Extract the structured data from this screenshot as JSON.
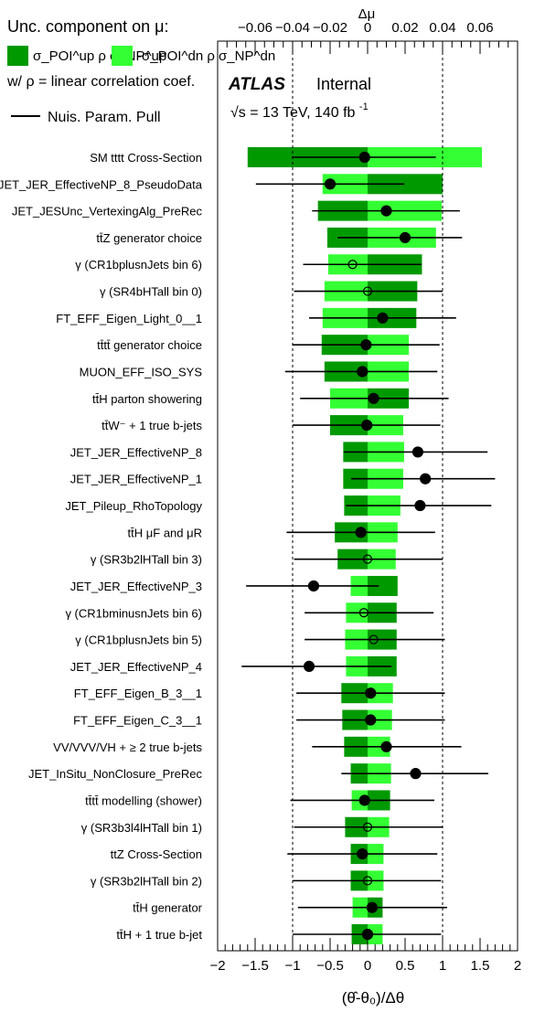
{
  "chart_data": {
    "type": "bar",
    "x_axis_bottom": {
      "range": [
        -2,
        2
      ],
      "ticks": [
        -2,
        -1.5,
        -1,
        -0.5,
        0,
        0.5,
        1,
        1.5,
        2
      ],
      "tick_labels": [
        "−2",
        "−1.5",
        "−1",
        "−0.5",
        "0",
        "0.5",
        "1",
        "1.5",
        "2"
      ],
      "label": "(θ̂-θ₀)/Δθ"
    },
    "x_axis_top": {
      "range": [
        -0.08,
        0.08
      ],
      "ticks": [
        -0.06,
        -0.04,
        -0.02,
        0,
        0.02,
        0.04,
        0.06
      ],
      "tick_labels": [
        "−0.06",
        "−0.04",
        "−0.02",
        "0",
        "0.02",
        "0.04",
        "0.06"
      ],
      "label": "Δμ"
    },
    "legend": {
      "header": "Unc. component on  μ:",
      "up_label": "σ_POI^up ρ σ_NP^up",
      "dn_label": "-σ_POI^dn ρ σ_NP^dn",
      "rho_note": "w/  ρ = linear correlation coef.",
      "pull_label": "Nuis. Param. Pull",
      "up_color": "#009900",
      "dn_color": "#33ff33"
    },
    "atlas": {
      "brand": "ATLAS",
      "status": "Internal",
      "energy": "√s = 13 TeV, 140 fb",
      "energy_sup": "-1"
    },
    "reference_lines": [
      -1,
      1
    ],
    "categories": [
      "SM tttt Cross-Section",
      "JET_JER_EffectiveNP_8_PseudoData",
      "JET_JESUnc_VertexingAlg_PreRec",
      "tt̄Z generator choice",
      "γ (CR1bplusnJets bin 6)",
      "γ (SR4bHTall bin 0)",
      "FT_EFF_Eigen_Light_0__1",
      "tt̄tt̄ generator choice",
      "MUON_EFF_ISO_SYS",
      "tt̄H parton showering",
      "tt̄W⁻ + 1 true b-jets",
      "JET_JER_EffectiveNP_8",
      "JET_JER_EffectiveNP_1",
      "JET_Pileup_RhoTopology",
      "tt̄H μF and μR",
      "γ (SR3b2lHTall bin 3)",
      "JET_JER_EffectiveNP_3",
      "γ (CR1bminusnJets bin 6)",
      "γ (CR1bplusnJets bin 5)",
      "JET_JER_EffectiveNP_4",
      "FT_EFF_Eigen_B_3__1",
      "FT_EFF_Eigen_C_3__1",
      "VV/VVV/VH +  ≥ 2 true b-jets",
      "JET_InSitu_NonClosure_PreRec",
      "tt̄tt̄ modelling (shower)",
      "γ (SR3b3l4lHTall bin 1)",
      "ttZ Cross-Section",
      "γ (SR3b2lHTall bin 2)",
      "tt̄H generator",
      "tt̄H + 1 true b-jet"
    ],
    "series": [
      {
        "name": "σ_POI^up ρ σ_NP^up",
        "color": "#009900",
        "values": [
          -0.064,
          0.04,
          -0.0265,
          -0.0215,
          0.029,
          0.0265,
          0.026,
          -0.0245,
          -0.023,
          0.022,
          -0.02,
          -0.013,
          -0.013,
          -0.0125,
          -0.0175,
          -0.016,
          0.016,
          0.0155,
          0.0155,
          0.0155,
          -0.014,
          -0.0135,
          -0.0125,
          -0.009,
          0.012,
          -0.012,
          -0.009,
          -0.009,
          0.008,
          -0.0085
        ]
      },
      {
        "name": "-σ_POI^dn ρ σ_NP^dn",
        "color": "#33ff33",
        "values": [
          0.061,
          -0.024,
          0.0395,
          0.0365,
          -0.021,
          -0.023,
          -0.024,
          0.022,
          0.022,
          -0.02,
          0.019,
          0.0195,
          0.019,
          0.0175,
          0.016,
          0.015,
          -0.009,
          -0.0115,
          -0.012,
          -0.0115,
          0.0135,
          0.013,
          0.012,
          0.0125,
          -0.0085,
          0.0115,
          0.0085,
          0.0085,
          -0.008,
          0.008
        ]
      },
      {
        "name": "Nuis. Param. Pull",
        "pull": [
          -0.04,
          -0.5,
          0.25,
          0.5,
          -0.2,
          0.0,
          0.2,
          -0.02,
          -0.07,
          0.08,
          -0.01,
          0.67,
          0.77,
          0.7,
          -0.09,
          0.0,
          -0.72,
          -0.05,
          0.08,
          -0.78,
          0.04,
          0.04,
          0.25,
          0.64,
          -0.04,
          0.0,
          -0.07,
          0.0,
          0.06,
          0.0
        ],
        "err_lo": [
          0.97,
          0.99,
          0.99,
          0.9,
          0.66,
          0.98,
          0.98,
          0.98,
          1.03,
          0.98,
          0.99,
          0.99,
          0.99,
          0.99,
          0.99,
          0.98,
          0.9,
          0.79,
          0.92,
          0.9,
          0.99,
          0.99,
          0.99,
          0.99,
          0.99,
          0.98,
          1.0,
          1.0,
          0.99,
          1.0
        ],
        "err_hi": [
          0.95,
          0.99,
          0.98,
          0.76,
          0.92,
          1.0,
          0.98,
          0.98,
          1.0,
          1.0,
          0.98,
          0.93,
          0.93,
          0.95,
          0.99,
          1.0,
          0.87,
          0.93,
          0.95,
          1.1,
          0.99,
          0.99,
          1.0,
          0.97,
          0.93,
          1.0,
          1.0,
          0.98,
          1.0,
          0.98
        ],
        "open_marker": [
          false,
          false,
          false,
          false,
          true,
          true,
          false,
          false,
          false,
          false,
          false,
          false,
          false,
          false,
          false,
          true,
          false,
          true,
          true,
          false,
          false,
          false,
          false,
          false,
          false,
          true,
          false,
          true,
          false,
          false
        ]
      }
    ]
  }
}
